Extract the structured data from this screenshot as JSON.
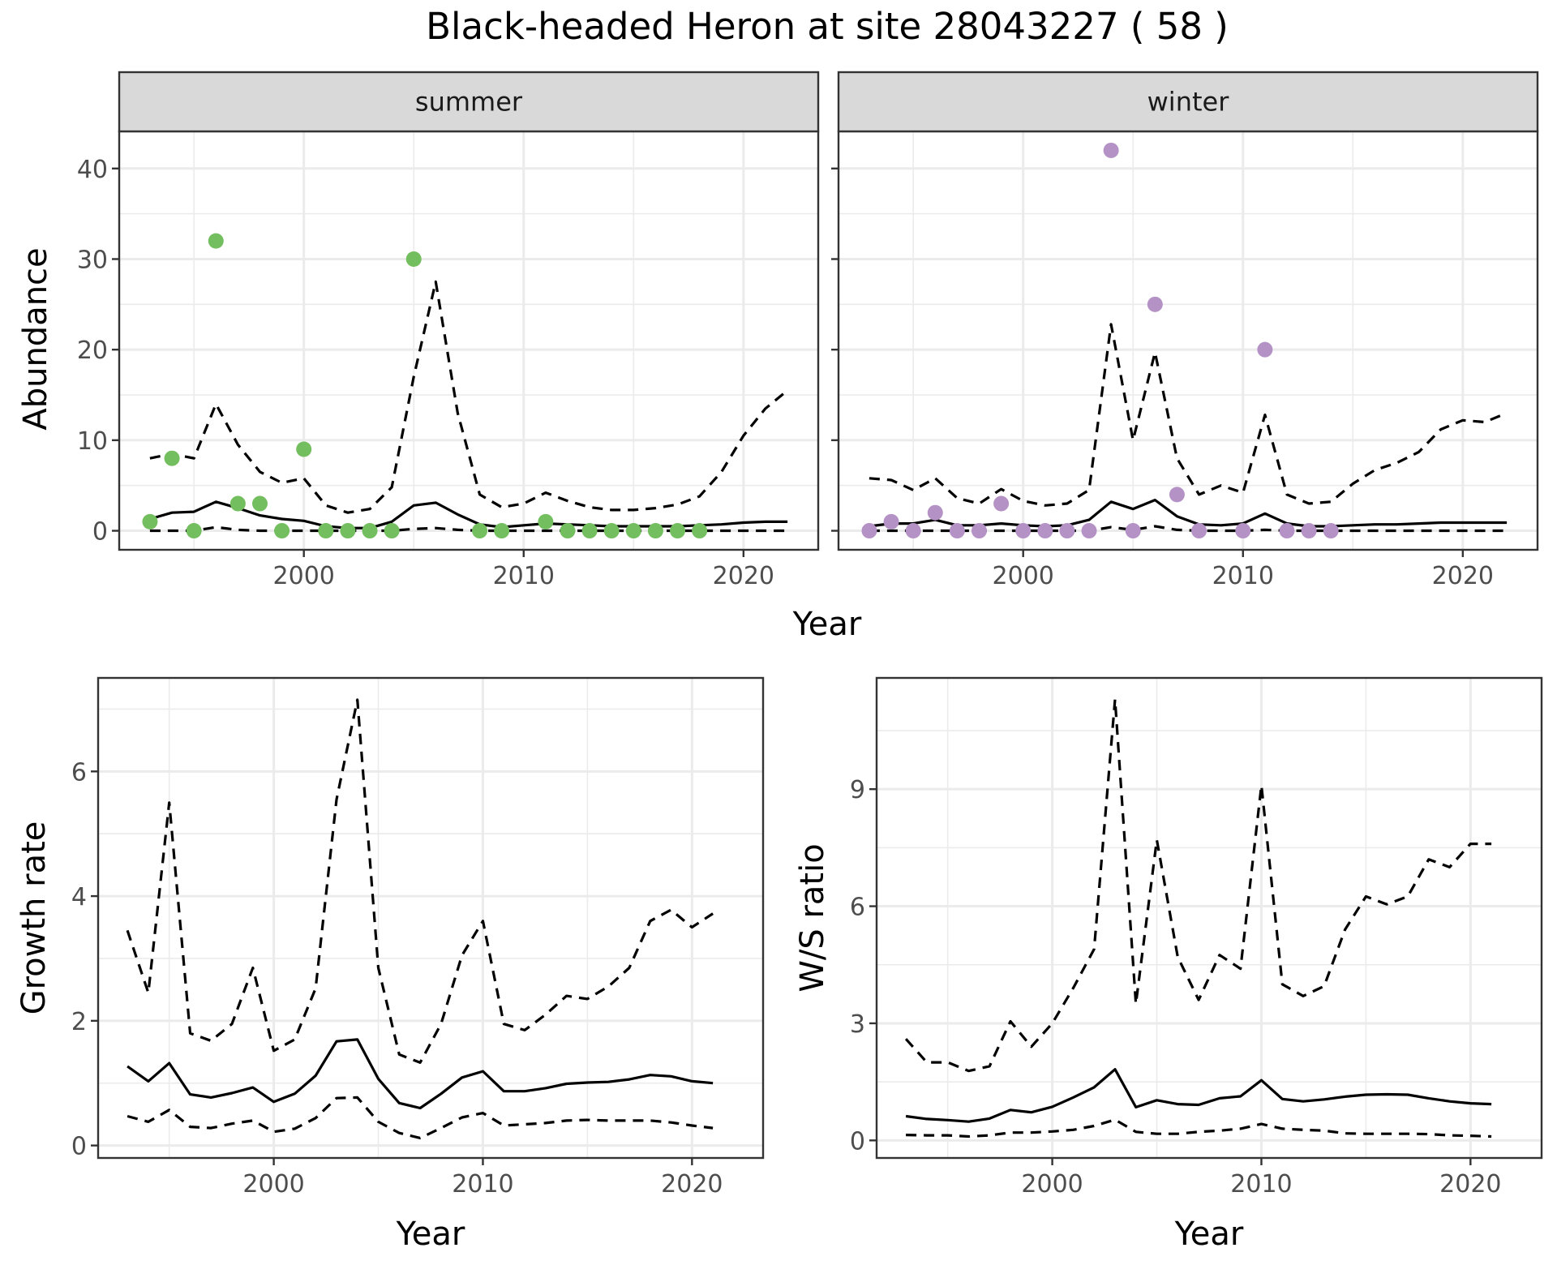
{
  "title": "Black-headed Heron at site 28043227 ( 58 )",
  "colors": {
    "summer_points": "#73be5e",
    "winter_points": "#b492c6",
    "line": "#000000",
    "strip_bg": "#d9d9d9",
    "grid": "#ebebeb",
    "border": "#333333"
  },
  "chart_data": [
    {
      "type": "scatter",
      "panel": "summer",
      "strip_label": "summer",
      "ylabel": "Abundance",
      "xlabel": "Year",
      "xlim": [
        1991.6,
        2023.4
      ],
      "ylim": [
        -2.1,
        44.1
      ],
      "yticks": [
        0,
        10,
        20,
        30,
        40
      ],
      "ytick_labels": [
        "0",
        "10",
        "20",
        "30",
        "40"
      ],
      "xticks": [
        2000,
        2010,
        2020
      ],
      "xtick_labels": [
        "2000",
        "2010",
        "2020"
      ],
      "grid": true,
      "points": {
        "x": [
          1993,
          1994,
          1995,
          1996,
          1997,
          1998,
          1999,
          2000,
          2001,
          2002,
          2003,
          2004,
          2005,
          2008,
          2009,
          2011,
          2012,
          2013,
          2014,
          2015,
          2016,
          2017,
          2018
        ],
        "y": [
          1,
          8,
          0,
          32,
          3,
          3,
          0,
          9,
          0,
          0,
          0,
          0,
          30,
          0,
          0,
          1,
          0,
          0,
          0,
          0,
          0,
          0,
          0
        ]
      },
      "series": [
        {
          "name": "mean",
          "style": "solid",
          "x": [
            1993,
            1994,
            1995,
            1996,
            1997,
            1998,
            1999,
            2000,
            2001,
            2002,
            2003,
            2004,
            2005,
            2006,
            2007,
            2008,
            2009,
            2010,
            2011,
            2012,
            2013,
            2014,
            2015,
            2016,
            2017,
            2018,
            2019,
            2020,
            2021,
            2022
          ],
          "y": [
            1.3,
            2.0,
            2.1,
            3.2,
            2.5,
            1.7,
            1.3,
            1.1,
            0.5,
            0.3,
            0.3,
            1.0,
            2.8,
            3.1,
            1.8,
            0.7,
            0.4,
            0.6,
            0.8,
            0.7,
            0.6,
            0.5,
            0.5,
            0.5,
            0.5,
            0.6,
            0.7,
            0.9,
            1.0,
            1.0
          ]
        },
        {
          "name": "upper",
          "style": "dashed",
          "x": [
            1993,
            1994,
            1995,
            1996,
            1997,
            1998,
            1999,
            2000,
            2001,
            2002,
            2003,
            2004,
            2005,
            2006,
            2007,
            2008,
            2009,
            2010,
            2011,
            2012,
            2013,
            2014,
            2015,
            2016,
            2017,
            2018,
            2019,
            2020,
            2021,
            2022
          ],
          "y": [
            8.0,
            8.5,
            8.0,
            14.0,
            9.5,
            6.5,
            5.3,
            5.8,
            2.8,
            2.0,
            2.4,
            4.8,
            17.0,
            27.5,
            13.0,
            4.0,
            2.6,
            3.0,
            4.2,
            3.3,
            2.6,
            2.3,
            2.3,
            2.5,
            2.9,
            3.8,
            6.5,
            10.5,
            13.5,
            15.5
          ]
        },
        {
          "name": "lower",
          "style": "dashed",
          "x": [
            1993,
            1994,
            1995,
            1996,
            1997,
            1998,
            1999,
            2000,
            2001,
            2002,
            2003,
            2004,
            2005,
            2006,
            2007,
            2008,
            2009,
            2010,
            2011,
            2012,
            2013,
            2014,
            2015,
            2016,
            2017,
            2018,
            2019,
            2020,
            2021,
            2022
          ],
          "y": [
            0,
            0,
            0,
            0.4,
            0.1,
            0,
            0,
            0,
            0,
            0,
            0,
            0,
            0.2,
            0.3,
            0.1,
            0,
            0,
            0,
            0,
            0,
            0,
            0,
            0,
            0,
            0,
            0,
            0,
            0,
            0,
            0
          ]
        }
      ]
    },
    {
      "type": "scatter",
      "panel": "winter",
      "strip_label": "winter",
      "xlabel": "Year",
      "xlim": [
        1991.6,
        2023.4
      ],
      "ylim": [
        -2.1,
        44.1
      ],
      "yticks": [
        0,
        10,
        20,
        30,
        40
      ],
      "xticks": [
        2000,
        2010,
        2020
      ],
      "xtick_labels": [
        "2000",
        "2010",
        "2020"
      ],
      "grid": true,
      "points": {
        "x": [
          1993,
          1994,
          1995,
          1996,
          1997,
          1998,
          1999,
          2000,
          2001,
          2002,
          2003,
          2004,
          2005,
          2006,
          2007,
          2008,
          2010,
          2011,
          2012,
          2013,
          2014
        ],
        "y": [
          0,
          1,
          0,
          2,
          0,
          0,
          3,
          0,
          0,
          0,
          0,
          42,
          0,
          25,
          4,
          0,
          0,
          20,
          0,
          0,
          0
        ]
      },
      "series": [
        {
          "name": "mean",
          "style": "solid",
          "x": [
            1993,
            1994,
            1995,
            1996,
            1997,
            1998,
            1999,
            2000,
            2001,
            2002,
            2003,
            2004,
            2005,
            2006,
            2007,
            2008,
            2009,
            2010,
            2011,
            2012,
            2013,
            2014,
            2015,
            2016,
            2017,
            2018,
            2019,
            2020,
            2021,
            2022
          ],
          "y": [
            0.5,
            0.8,
            0.8,
            1.2,
            0.6,
            0.6,
            0.8,
            0.6,
            0.5,
            0.6,
            1.2,
            3.2,
            2.4,
            3.4,
            1.6,
            0.7,
            0.6,
            0.8,
            1.9,
            0.8,
            0.5,
            0.5,
            0.6,
            0.7,
            0.7,
            0.8,
            0.9,
            0.9,
            0.9,
            0.9
          ]
        },
        {
          "name": "upper",
          "style": "dashed",
          "x": [
            1993,
            1994,
            1995,
            1996,
            1997,
            1998,
            1999,
            2000,
            2001,
            2002,
            2003,
            2004,
            2005,
            2006,
            2007,
            2008,
            2009,
            2010,
            2011,
            2012,
            2013,
            2014,
            2015,
            2016,
            2017,
            2018,
            2019,
            2020,
            2021,
            2022
          ],
          "y": [
            5.8,
            5.6,
            4.5,
            5.8,
            3.6,
            3.0,
            4.6,
            3.3,
            2.8,
            3.0,
            4.5,
            22.8,
            10.0,
            19.7,
            8.0,
            4.0,
            5.0,
            4.2,
            12.8,
            4.0,
            3.0,
            3.2,
            5.2,
            6.7,
            7.5,
            8.7,
            11.2,
            12.2,
            12.0,
            13.0
          ]
        },
        {
          "name": "lower",
          "style": "dashed",
          "x": [
            1993,
            1994,
            1995,
            1996,
            1997,
            1998,
            1999,
            2000,
            2001,
            2002,
            2003,
            2004,
            2005,
            2006,
            2007,
            2008,
            2009,
            2010,
            2011,
            2012,
            2013,
            2014,
            2015,
            2016,
            2017,
            2018,
            2019,
            2020,
            2021,
            2022
          ],
          "y": [
            0,
            0,
            0,
            0,
            0,
            0,
            0,
            0,
            0,
            0,
            0,
            0.4,
            0.1,
            0.5,
            0.1,
            0,
            0,
            0,
            0.1,
            0,
            0,
            0,
            0,
            0,
            0,
            0,
            0,
            0,
            0,
            0
          ]
        }
      ]
    },
    {
      "type": "line",
      "panel": "growth",
      "ylabel": "Growth rate",
      "xlabel": "Year",
      "xlim": [
        1991.6,
        2023.4
      ],
      "ylim": [
        -0.2,
        7.5
      ],
      "yticks": [
        0,
        2,
        4,
        6
      ],
      "ytick_labels": [
        "0",
        "2",
        "4",
        "6"
      ],
      "xticks": [
        2000,
        2010,
        2020
      ],
      "xtick_labels": [
        "2000",
        "2010",
        "2020"
      ],
      "grid": true,
      "series": [
        {
          "name": "mean",
          "style": "solid",
          "x": [
            1993,
            1994,
            1995,
            1996,
            1997,
            1998,
            1999,
            2000,
            2001,
            2002,
            2003,
            2004,
            2005,
            2006,
            2007,
            2008,
            2009,
            2010,
            2011,
            2012,
            2013,
            2014,
            2015,
            2016,
            2017,
            2018,
            2019,
            2020,
            2021
          ],
          "y": [
            1.27,
            1.03,
            1.32,
            0.82,
            0.77,
            0.84,
            0.93,
            0.7,
            0.83,
            1.12,
            1.67,
            1.7,
            1.07,
            0.68,
            0.6,
            0.83,
            1.09,
            1.19,
            0.87,
            0.87,
            0.92,
            0.99,
            1.01,
            1.02,
            1.06,
            1.13,
            1.11,
            1.03,
            1.0
          ]
        },
        {
          "name": "upper",
          "style": "dashed",
          "x": [
            1993,
            1994,
            1995,
            1996,
            1997,
            1998,
            1999,
            2000,
            2001,
            2002,
            2003,
            2004,
            2005,
            2006,
            2007,
            2008,
            2009,
            2010,
            2011,
            2012,
            2013,
            2014,
            2015,
            2016,
            2017,
            2018,
            2019,
            2020,
            2021
          ],
          "y": [
            3.45,
            2.45,
            5.5,
            1.8,
            1.68,
            1.95,
            2.85,
            1.52,
            1.7,
            2.52,
            5.55,
            7.15,
            2.85,
            1.46,
            1.33,
            1.95,
            3.05,
            3.6,
            1.95,
            1.85,
            2.1,
            2.4,
            2.35,
            2.55,
            2.85,
            3.6,
            3.78,
            3.5,
            3.72
          ]
        },
        {
          "name": "lower",
          "style": "dashed",
          "x": [
            1993,
            1994,
            1995,
            1996,
            1997,
            1998,
            1999,
            2000,
            2001,
            2002,
            2003,
            2004,
            2005,
            2006,
            2007,
            2008,
            2009,
            2010,
            2011,
            2012,
            2013,
            2014,
            2015,
            2016,
            2017,
            2018,
            2019,
            2020,
            2021
          ],
          "y": [
            0.47,
            0.38,
            0.57,
            0.3,
            0.28,
            0.35,
            0.4,
            0.22,
            0.27,
            0.44,
            0.76,
            0.77,
            0.38,
            0.2,
            0.12,
            0.28,
            0.45,
            0.52,
            0.32,
            0.34,
            0.36,
            0.4,
            0.41,
            0.4,
            0.4,
            0.4,
            0.37,
            0.32,
            0.28
          ]
        }
      ]
    },
    {
      "type": "line",
      "panel": "ws",
      "ylabel": "W/S ratio",
      "xlabel": "Year",
      "xlim": [
        1991.6,
        2023.4
      ],
      "ylim": [
        -0.45,
        11.85
      ],
      "yticks": [
        0,
        3,
        6,
        9
      ],
      "ytick_labels": [
        "0",
        "3",
        "6",
        "9"
      ],
      "xticks": [
        2000,
        2010,
        2020
      ],
      "xtick_labels": [
        "2000",
        "2010",
        "2020"
      ],
      "grid": true,
      "series": [
        {
          "name": "mean",
          "style": "solid",
          "x": [
            1993,
            1994,
            1995,
            1996,
            1997,
            1998,
            1999,
            2000,
            2001,
            2002,
            2003,
            2004,
            2005,
            2006,
            2007,
            2008,
            2009,
            2010,
            2011,
            2012,
            2013,
            2014,
            2015,
            2016,
            2017,
            2018,
            2019,
            2020,
            2021
          ],
          "y": [
            0.62,
            0.55,
            0.52,
            0.48,
            0.56,
            0.78,
            0.72,
            0.86,
            1.1,
            1.36,
            1.82,
            0.85,
            1.03,
            0.93,
            0.91,
            1.08,
            1.13,
            1.54,
            1.06,
            1.0,
            1.05,
            1.12,
            1.17,
            1.18,
            1.17,
            1.08,
            1.0,
            0.95,
            0.93
          ]
        },
        {
          "name": "upper",
          "style": "dashed",
          "x": [
            1993,
            1994,
            1995,
            1996,
            1997,
            1998,
            1999,
            2000,
            2001,
            2002,
            2003,
            2004,
            2005,
            2006,
            2007,
            2008,
            2009,
            2010,
            2011,
            2012,
            2013,
            2014,
            2015,
            2016,
            2017,
            2018,
            2019,
            2020,
            2021
          ],
          "y": [
            2.6,
            2.0,
            2.0,
            1.78,
            1.9,
            3.05,
            2.4,
            3.0,
            3.9,
            4.9,
            11.3,
            3.5,
            7.7,
            4.7,
            3.6,
            4.75,
            4.4,
            9.1,
            4.0,
            3.7,
            3.95,
            5.4,
            6.25,
            6.05,
            6.25,
            7.2,
            7.0,
            7.6,
            7.6
          ]
        },
        {
          "name": "lower",
          "style": "dashed",
          "x": [
            1993,
            1994,
            1995,
            1996,
            1997,
            1998,
            1999,
            2000,
            2001,
            2002,
            2003,
            2004,
            2005,
            2006,
            2007,
            2008,
            2009,
            2010,
            2011,
            2012,
            2013,
            2014,
            2015,
            2016,
            2017,
            2018,
            2019,
            2020,
            2021
          ],
          "y": [
            0.14,
            0.13,
            0.13,
            0.1,
            0.13,
            0.2,
            0.2,
            0.23,
            0.27,
            0.37,
            0.53,
            0.22,
            0.17,
            0.17,
            0.22,
            0.25,
            0.3,
            0.42,
            0.3,
            0.27,
            0.25,
            0.18,
            0.17,
            0.17,
            0.17,
            0.16,
            0.13,
            0.12,
            0.1
          ]
        }
      ]
    }
  ]
}
